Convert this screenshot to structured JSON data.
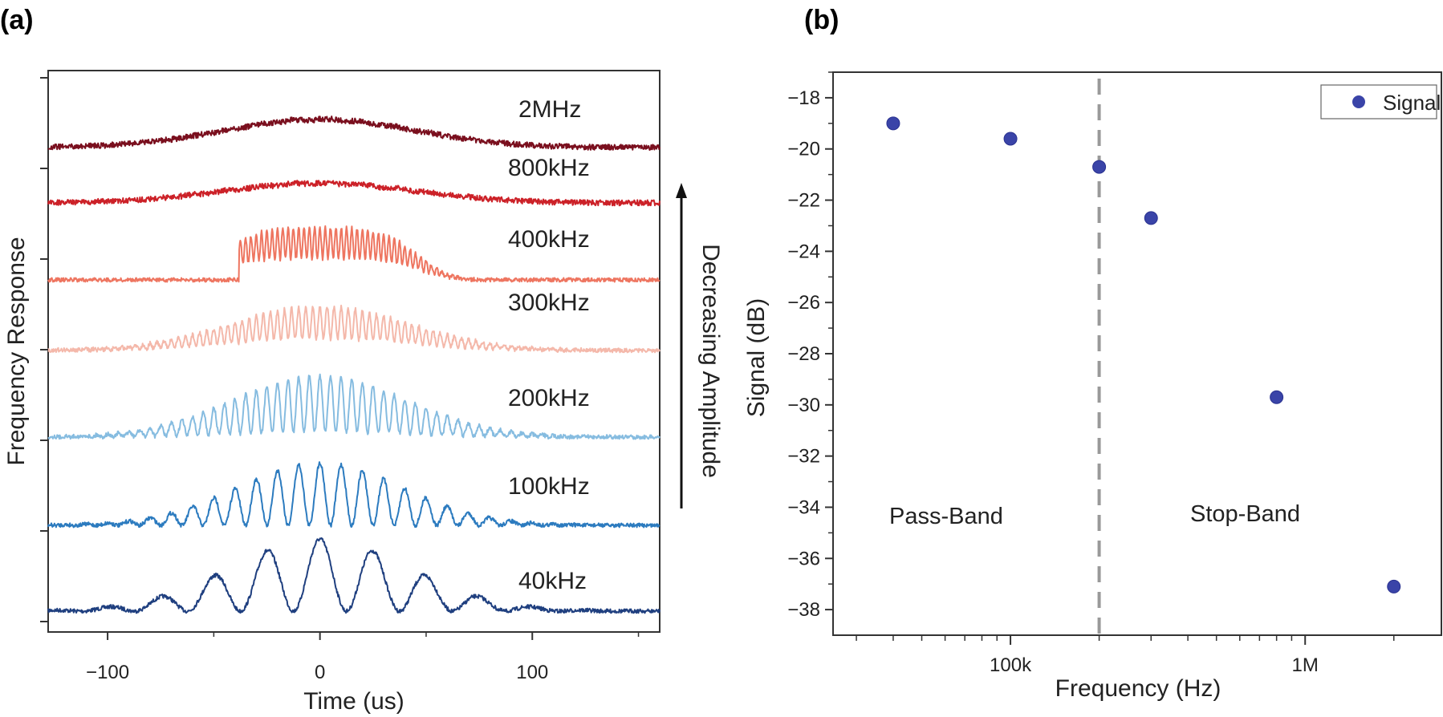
{
  "chart_data": [
    {
      "panel": "(a)",
      "type": "line",
      "xlabel": "Time (us)",
      "ylabel": "Frequency Response",
      "xlim": [
        -128,
        160
      ],
      "x_ticks": [
        -100,
        0,
        100
      ],
      "x_tick_labels": [
        "−100",
        "0",
        "100"
      ],
      "annotation": "Decreasing Amplitude",
      "series": [
        {
          "name": "40kHz",
          "label": "40kHz",
          "color": "#1f3f7f",
          "level": 0,
          "freq_khz": 40,
          "envelope_halfwidth_us": 70,
          "onset_us": null,
          "modulation_depth": 1.0
        },
        {
          "name": "100kHz",
          "label": "100kHz",
          "color": "#2c7bbf",
          "level": 1,
          "freq_khz": 100,
          "envelope_halfwidth_us": 65,
          "onset_us": null,
          "modulation_depth": 1.0
        },
        {
          "name": "200kHz",
          "label": "200kHz",
          "color": "#86bce0",
          "level": 2,
          "freq_khz": 200,
          "envelope_halfwidth_us": 68,
          "onset_us": null,
          "modulation_depth": 0.9
        },
        {
          "name": "300kHz",
          "label": "300kHz",
          "color": "#f4b8aa",
          "level": 3,
          "freq_khz": 300,
          "envelope_halfwidth_us": 70,
          "onset_us": null,
          "modulation_depth": 0.7
        },
        {
          "name": "400kHz",
          "label": "400kHz",
          "color": "#ee7560",
          "level": 4,
          "freq_khz": 400,
          "envelope_halfwidth_us": 50,
          "onset_us": -38,
          "modulation_depth": 0.55
        },
        {
          "name": "800kHz",
          "label": "800kHz",
          "color": "#cc2128",
          "level": 5,
          "freq_khz": 800,
          "envelope_halfwidth_us": 75,
          "onset_us": null,
          "modulation_depth": 0.15
        },
        {
          "name": "2MHz",
          "label": "2MHz",
          "color": "#7a0f1e",
          "level": 6,
          "freq_khz": 2000,
          "envelope_halfwidth_us": 75,
          "onset_us": null,
          "modulation_depth": 0.1
        }
      ]
    },
    {
      "panel": "(b)",
      "type": "scatter",
      "xlabel": "Frequency (Hz)",
      "ylabel": "Signal (dB)",
      "xscale": "log",
      "xlim": [
        25000,
        2900000
      ],
      "ylim": [
        -39,
        -17
      ],
      "x_ticks": [
        100000,
        1000000
      ],
      "x_tick_labels": [
        "100k",
        "1M"
      ],
      "y_ticks": [
        -38,
        -36,
        -34,
        -32,
        -30,
        -28,
        -26,
        -24,
        -22,
        -20,
        -18
      ],
      "y_tick_labels": [
        "−38",
        "−36",
        "−34",
        "−32",
        "−30",
        "−28",
        "−26",
        "−24",
        "−22",
        "−20",
        "−18"
      ],
      "series": [
        {
          "name": "Signal",
          "color": "#3a44a8",
          "x": [
            40000,
            100000,
            200000,
            300000,
            800000,
            2000000
          ],
          "y": [
            -19.0,
            -19.6,
            -20.7,
            -22.7,
            -29.7,
            -37.1
          ]
        }
      ],
      "cutoff_x": 200000,
      "legend": {
        "label": "Signal",
        "position": "top-right"
      },
      "annotations": {
        "left": "Pass-Band",
        "right": "Stop-Band"
      }
    }
  ]
}
